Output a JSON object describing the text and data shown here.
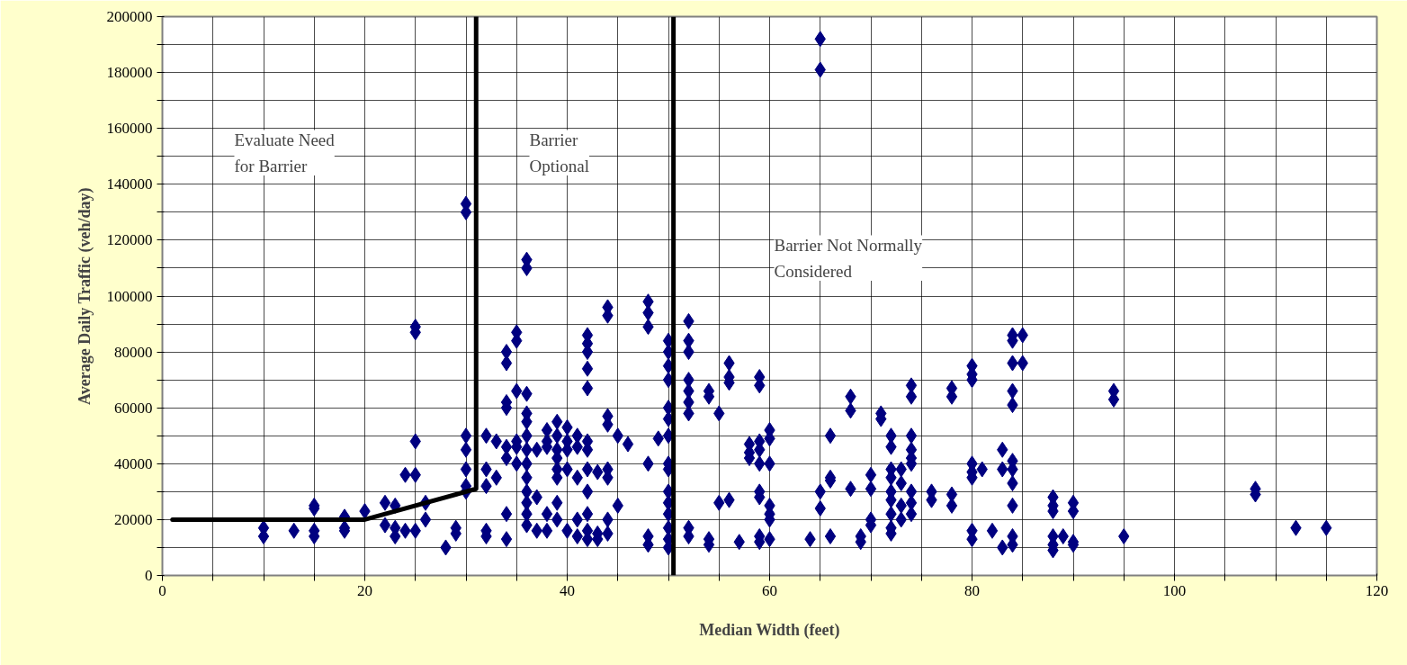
{
  "chart_data": {
    "type": "scatter",
    "xlabel": "Median Width (feet)",
    "ylabel": "Average Daily Traffic (veh/day)",
    "xlim": [
      0,
      120
    ],
    "ylim": [
      0,
      200000
    ],
    "xticks": [
      0,
      {
        "value": 5,
        "label": null
      },
      {
        "value": 10,
        "label": null
      },
      {
        "value": 15,
        "label": null
      },
      20,
      {
        "value": 25,
        "label": null
      },
      {
        "value": 30,
        "label": null
      },
      {
        "value": 35,
        "label": null
      },
      40,
      {
        "value": 45,
        "label": null
      },
      {
        "value": 50,
        "label": null
      },
      {
        "value": 55,
        "label": null
      },
      60,
      {
        "value": 65,
        "label": null
      },
      {
        "value": 70,
        "label": null
      },
      {
        "value": 75,
        "label": null
      },
      80,
      {
        "value": 85,
        "label": null
      },
      {
        "value": 90,
        "label": null
      },
      {
        "value": 95,
        "label": null
      },
      100,
      {
        "value": 105,
        "label": null
      },
      {
        "value": 110,
        "label": null
      },
      {
        "value": 115,
        "label": null
      },
      120
    ],
    "yticks": [
      0,
      {
        "value": 10000,
        "label": null
      },
      20000,
      {
        "value": 30000,
        "label": null
      },
      40000,
      {
        "value": 50000,
        "label": null
      },
      60000,
      {
        "value": 70000,
        "label": null
      },
      80000,
      {
        "value": 90000,
        "label": null
      },
      100000,
      {
        "value": 110000,
        "label": null
      },
      120000,
      {
        "value": 130000,
        "label": null
      },
      140000,
      {
        "value": 150000,
        "label": null
      },
      160000,
      {
        "value": 170000,
        "label": null
      },
      180000,
      {
        "value": 190000,
        "label": null
      },
      200000
    ],
    "grid": true,
    "marker": "diamond",
    "annotations": [
      "Evaluate Need\nfor Barrier",
      "Barrier\nOptional",
      "Barrier Not Normally\nConsidered"
    ],
    "ref_lines": [
      {
        "axis": "x",
        "value": 50.5,
        "color": "#000000"
      }
    ],
    "series": [
      {
        "type": "scatter",
        "color": "#000080",
        "x": [
          10,
          10,
          13,
          15,
          15,
          15,
          15,
          18,
          18,
          18,
          20,
          22,
          22,
          23,
          23,
          23,
          24,
          24,
          25,
          25,
          25,
          25,
          25,
          26,
          26,
          28,
          29,
          29,
          30,
          30,
          30,
          30,
          30,
          30,
          30,
          32,
          32,
          32,
          32,
          32,
          33,
          33,
          34,
          34,
          34,
          34,
          34,
          34,
          34,
          34,
          35,
          35,
          35,
          35,
          35,
          35,
          36,
          36,
          36,
          36,
          36,
          36,
          36,
          36,
          36,
          36,
          36,
          36,
          36,
          37,
          37,
          37,
          38,
          38,
          38,
          38,
          38,
          39,
          39,
          39,
          39,
          39,
          39,
          39,
          39,
          40,
          40,
          40,
          40,
          40,
          41,
          41,
          41,
          41,
          41,
          42,
          42,
          42,
          42,
          42,
          42,
          42,
          42,
          42,
          42,
          42,
          42,
          43,
          43,
          43,
          44,
          44,
          44,
          44,
          44,
          44,
          44,
          44,
          45,
          45,
          46,
          48,
          48,
          48,
          48,
          48,
          48,
          49,
          50,
          50,
          50,
          50,
          50,
          50,
          50,
          50,
          50,
          50,
          50,
          50,
          50,
          50,
          50,
          52,
          52,
          52,
          52,
          52,
          52,
          52,
          52,
          52,
          54,
          54,
          54,
          54,
          55,
          55,
          56,
          56,
          56,
          56,
          57,
          58,
          58,
          58,
          59,
          59,
          59,
          59,
          59,
          59,
          59,
          59,
          59,
          60,
          60,
          60,
          60,
          60,
          60,
          60,
          64,
          65,
          65,
          65,
          65,
          66,
          66,
          66,
          66,
          68,
          68,
          68,
          69,
          69,
          70,
          70,
          70,
          70,
          71,
          71,
          72,
          72,
          72,
          72,
          72,
          72,
          72,
          72,
          72,
          73,
          73,
          73,
          73,
          74,
          74,
          74,
          74,
          74,
          74,
          74,
          74,
          74,
          76,
          76,
          78,
          78,
          78,
          78,
          80,
          80,
          80,
          80,
          80,
          80,
          80,
          80,
          81,
          82,
          83,
          83,
          83,
          84,
          84,
          84,
          84,
          84,
          84,
          84,
          84,
          84,
          84,
          84,
          85,
          85,
          88,
          88,
          88,
          88,
          88,
          88,
          89,
          90,
          90,
          90,
          90,
          94,
          94,
          95,
          108,
          108,
          112,
          115
        ],
        "values": [
          17000,
          14000,
          16000,
          25000,
          24000,
          16000,
          14000,
          21000,
          17000,
          16000,
          23000,
          26000,
          18000,
          25000,
          17000,
          14000,
          36000,
          16000,
          48000,
          36000,
          89000,
          87000,
          16000,
          20000,
          26000,
          10000,
          17000,
          15000,
          133000,
          130000,
          50000,
          45000,
          38000,
          32000,
          30000,
          16000,
          14000,
          50000,
          32000,
          38000,
          48000,
          35000,
          80000,
          76000,
          62000,
          60000,
          46000,
          42000,
          22000,
          13000,
          87000,
          84000,
          66000,
          46000,
          40000,
          48000,
          113000,
          110000,
          65000,
          58000,
          55000,
          50000,
          45000,
          40000,
          35000,
          30000,
          26000,
          22000,
          18000,
          28000,
          16000,
          45000,
          48000,
          22000,
          16000,
          52000,
          46000,
          55000,
          50000,
          45000,
          42000,
          38000,
          35000,
          26000,
          20000,
          53000,
          48000,
          45000,
          38000,
          16000,
          50000,
          46000,
          35000,
          20000,
          14000,
          86000,
          83000,
          80000,
          74000,
          67000,
          48000,
          45000,
          38000,
          30000,
          22000,
          16000,
          13000,
          37000,
          15000,
          13000,
          96000,
          93000,
          57000,
          54000,
          38000,
          35000,
          20000,
          15000,
          25000,
          50000,
          47000,
          98000,
          94000,
          89000,
          40000,
          14000,
          11000,
          49000,
          84000,
          80000,
          75000,
          70000,
          60000,
          56000,
          50000,
          40000,
          38000,
          30000,
          26000,
          22000,
          17000,
          13000,
          10000,
          91000,
          84000,
          80000,
          70000,
          66000,
          62000,
          58000,
          17000,
          14000,
          66000,
          64000,
          13000,
          11000,
          58000,
          26000,
          76000,
          71000,
          69000,
          27000,
          12000,
          47000,
          44000,
          42000,
          71000,
          68000,
          48000,
          45000,
          40000,
          30000,
          28000,
          14000,
          12000,
          52000,
          49000,
          40000,
          25000,
          22000,
          20000,
          13000,
          13000,
          192000,
          181000,
          30000,
          24000,
          50000,
          35000,
          34000,
          14000,
          64000,
          59000,
          31000,
          14000,
          12000,
          36000,
          31000,
          20000,
          18000,
          58000,
          56000,
          50000,
          46000,
          38000,
          35000,
          30000,
          27000,
          22000,
          17000,
          15000,
          38000,
          33000,
          25000,
          20000,
          68000,
          64000,
          50000,
          45000,
          42000,
          40000,
          30000,
          26000,
          22000,
          30000,
          27000,
          67000,
          64000,
          29000,
          25000,
          75000,
          72000,
          70000,
          40000,
          37000,
          35000,
          16000,
          13000,
          38000,
          16000,
          45000,
          38000,
          10000,
          86000,
          84000,
          76000,
          66000,
          61000,
          41000,
          38000,
          33000,
          25000,
          14000,
          11000,
          86000,
          76000,
          28000,
          25000,
          23000,
          14000,
          11000,
          9000,
          14000,
          26000,
          23000,
          12000,
          11000,
          66000,
          63000,
          14000,
          31000,
          29000,
          17000,
          17000
        ]
      },
      {
        "type": "line",
        "color": "#000000",
        "marker": "none",
        "x": [
          1,
          20,
          31,
          31
        ],
        "values": [
          20000,
          20000,
          31000,
          200000
        ]
      }
    ]
  }
}
